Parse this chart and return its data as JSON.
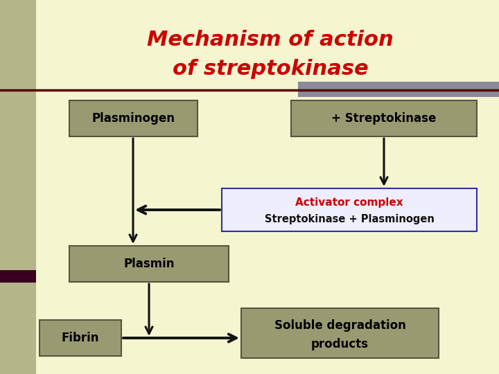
{
  "title_line1": "Mechanism of action",
  "title_line2": "of streptokinase",
  "title_color": "#cc0000",
  "title_fontsize": 22,
  "bg_color": "#f5f5d0",
  "sidebar_color": "#b5b58a",
  "sidebar_dark": "#3a0020",
  "box_fill_olive": "#9a9a72",
  "box_fill_white": "#eeeeff",
  "box_edge_olive": "#555540",
  "box_edge_blue": "#3030a0",
  "arrow_color": "#111111",
  "gray_accent": "#8a8a9a",
  "line_color": "#550000",
  "labels": {
    "plasminogen": "Plasminogen",
    "streptokinase": "+ Streptokinase",
    "activator_line1": "Activator complex",
    "activator_line2": "Streptokinase + Plasminogen",
    "plasmin": "Plasmin",
    "fibrin": "Fibrin",
    "soluble_line1": "Soluble degradation",
    "soluble_line2": "products"
  },
  "activator_color1": "#cc0000",
  "activator_color2": "#111111"
}
